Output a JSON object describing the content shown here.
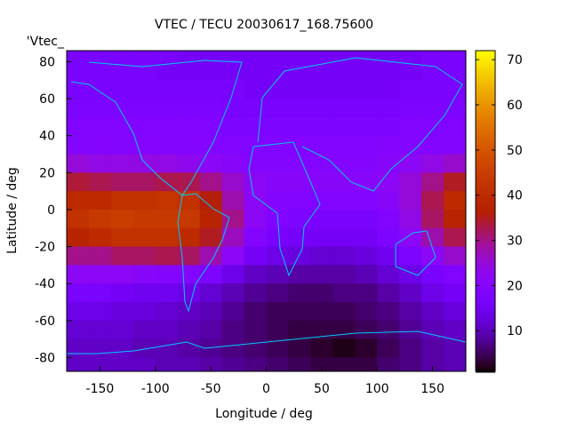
{
  "chart_data": {
    "type": "heatmap",
    "title": "VTEC / TECU 20030617_168.75600",
    "xlabel": "Longitude / deg",
    "ylabel": "Latitude / deg",
    "key_label": "'Vtec_",
    "xlim": [
      -180,
      180
    ],
    "ylim": [
      -87.5,
      86
    ],
    "xticks": [
      -150,
      -100,
      -50,
      0,
      50,
      100,
      150
    ],
    "yticks": [
      -80,
      -60,
      -40,
      -20,
      0,
      20,
      40,
      60,
      80
    ],
    "colorbar": {
      "range": [
        1,
        72
      ],
      "ticks": [
        10,
        20,
        30,
        40,
        50,
        60,
        70
      ]
    },
    "lon_centers": [
      -170,
      -150,
      -130,
      -110,
      -90,
      -70,
      -50,
      -30,
      -10,
      10,
      30,
      50,
      70,
      90,
      110,
      130,
      150,
      170
    ],
    "lat_centers": [
      85,
      75,
      65,
      55,
      45,
      35,
      25,
      15,
      5,
      -5,
      -15,
      -25,
      -35,
      -45,
      -55,
      -65,
      -75,
      -85
    ],
    "values": [
      [
        17,
        17,
        17,
        17,
        17,
        16,
        16,
        16,
        16,
        16,
        16,
        16,
        16,
        16,
        16,
        16,
        17,
        17
      ],
      [
        17,
        17,
        17,
        17,
        16,
        16,
        16,
        16,
        16,
        16,
        16,
        16,
        16,
        16,
        16,
        16,
        17,
        17
      ],
      [
        17,
        17,
        17,
        17,
        17,
        17,
        17,
        17,
        16,
        16,
        16,
        16,
        16,
        16,
        16,
        17,
        17,
        17
      ],
      [
        18,
        18,
        18,
        18,
        18,
        18,
        18,
        17,
        17,
        17,
        17,
        17,
        17,
        17,
        17,
        18,
        18,
        18
      ],
      [
        19,
        19,
        19,
        19,
        19,
        19,
        19,
        18,
        18,
        18,
        18,
        18,
        18,
        18,
        18,
        19,
        19,
        19
      ],
      [
        20,
        20,
        20,
        20,
        20,
        20,
        20,
        19,
        19,
        19,
        19,
        19,
        19,
        19,
        20,
        20,
        20,
        20
      ],
      [
        25,
        24,
        24,
        24,
        24,
        23,
        22,
        21,
        20,
        20,
        20,
        20,
        20,
        20,
        21,
        22,
        24,
        26
      ],
      [
        34,
        33,
        32,
        32,
        33,
        33,
        30,
        26,
        22,
        21,
        21,
        21,
        21,
        21,
        22,
        25,
        30,
        35
      ],
      [
        40,
        40,
        42,
        42,
        43,
        42,
        36,
        28,
        22,
        20,
        19,
        19,
        19,
        19,
        21,
        25,
        33,
        40
      ],
      [
        42,
        44,
        45,
        44,
        44,
        44,
        38,
        30,
        22,
        19,
        18,
        17,
        17,
        17,
        19,
        24,
        32,
        38
      ],
      [
        38,
        40,
        42,
        42,
        42,
        40,
        35,
        27,
        20,
        17,
        16,
        16,
        16,
        16,
        18,
        22,
        28,
        33
      ],
      [
        30,
        30,
        32,
        32,
        33,
        32,
        28,
        22,
        16,
        14,
        13,
        12,
        12,
        13,
        15,
        18,
        22,
        26
      ],
      [
        22,
        22,
        22,
        21,
        20,
        20,
        18,
        14,
        11,
        10,
        9,
        9,
        9,
        10,
        12,
        14,
        17,
        19
      ],
      [
        17,
        17,
        16,
        15,
        15,
        14,
        12,
        10,
        8,
        7,
        6,
        6,
        7,
        7,
        9,
        11,
        14,
        16
      ],
      [
        14,
        14,
        13,
        13,
        12,
        11,
        10,
        8,
        6,
        5,
        5,
        5,
        5,
        6,
        7,
        9,
        11,
        13
      ],
      [
        12,
        12,
        12,
        11,
        11,
        10,
        9,
        7,
        6,
        5,
        4,
        4,
        4,
        5,
        6,
        8,
        10,
        11
      ],
      [
        11,
        11,
        11,
        10,
        10,
        9,
        8,
        7,
        6,
        5,
        4,
        3,
        2,
        3,
        5,
        7,
        9,
        10
      ],
      [
        11,
        11,
        11,
        11,
        10,
        10,
        9,
        8,
        7,
        6,
        5,
        4,
        4,
        4,
        6,
        7,
        9,
        10
      ]
    ],
    "coastline_color": "#00ccff"
  }
}
